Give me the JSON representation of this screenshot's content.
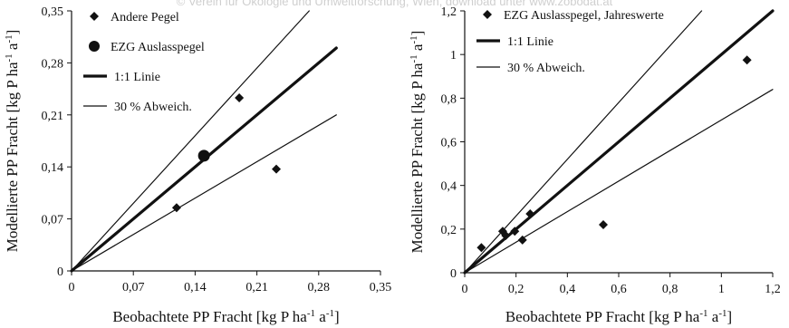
{
  "watermark": "© Verein für Ökologie und Umweltforschung, Wien, download unter www.zobodat.at",
  "chart_data": [
    {
      "type": "scatter",
      "xlabel": "Beobachtete PP Fracht [kg P ha-1 a-1]",
      "ylabel": "Modellierte PP Fracht [kg P ha-1 a-1]",
      "xlim": [
        0,
        0.35
      ],
      "ylim": [
        0,
        0.35
      ],
      "x_ticks": [
        "0",
        "0,07",
        "0,14",
        "0,21",
        "0,28",
        "0,35"
      ],
      "y_ticks": [
        "0",
        "0,07",
        "0,14",
        "0,21",
        "0,28",
        "0,35"
      ],
      "legend_position": "top-left",
      "series": [
        {
          "name": "Andere Pegel",
          "marker": "diamond",
          "points": [
            [
              0.119,
              0.085
            ],
            [
              0.19,
              0.233
            ],
            [
              0.232,
              0.137
            ]
          ]
        },
        {
          "name": "EZG Auslasspegel",
          "marker": "circle",
          "points": [
            [
              0.15,
              0.155
            ]
          ]
        }
      ],
      "lines": [
        {
          "name": "1:1 Linie",
          "style": "thick",
          "slope": 1.0,
          "x_end": 0.3
        },
        {
          "name": "30 % Abweich.",
          "style": "thin",
          "slope": 1.3,
          "x_end": 0.3
        },
        {
          "name": "",
          "style": "thin",
          "slope": 0.7,
          "x_end": 0.3
        }
      ]
    },
    {
      "type": "scatter",
      "xlabel": "Beobachtete PP Fracht [kg P ha-1 a-1]",
      "ylabel": "Modellierte PP Fracht [kg P ha-1 a-1]",
      "xlim": [
        0,
        1.2
      ],
      "ylim": [
        0,
        1.2
      ],
      "x_ticks": [
        "0",
        "0,2",
        "0,4",
        "0,6",
        "0,8",
        "1",
        "1,2"
      ],
      "y_ticks": [
        "0",
        "0,2",
        "0,4",
        "0,6",
        "0,8",
        "1",
        "1,2"
      ],
      "legend_position": "top-left",
      "series": [
        {
          "name": "EZG Auslasspegel, Jahreswerte",
          "marker": "diamond",
          "points": [
            [
              0.065,
              0.115
            ],
            [
              0.148,
              0.19
            ],
            [
              0.16,
              0.17
            ],
            [
              0.195,
              0.19
            ],
            [
              0.225,
              0.15
            ],
            [
              0.255,
              0.27
            ],
            [
              0.54,
              0.22
            ],
            [
              1.1,
              0.975
            ]
          ]
        }
      ],
      "lines": [
        {
          "name": "1:1 Linie",
          "style": "thick",
          "slope": 1.0,
          "x_end": 1.2
        },
        {
          "name": "30 % Abweich.",
          "style": "thin",
          "slope": 1.3,
          "x_end": 1.2
        },
        {
          "name": "",
          "style": "thin",
          "slope": 0.7,
          "x_end": 1.2
        }
      ]
    }
  ]
}
